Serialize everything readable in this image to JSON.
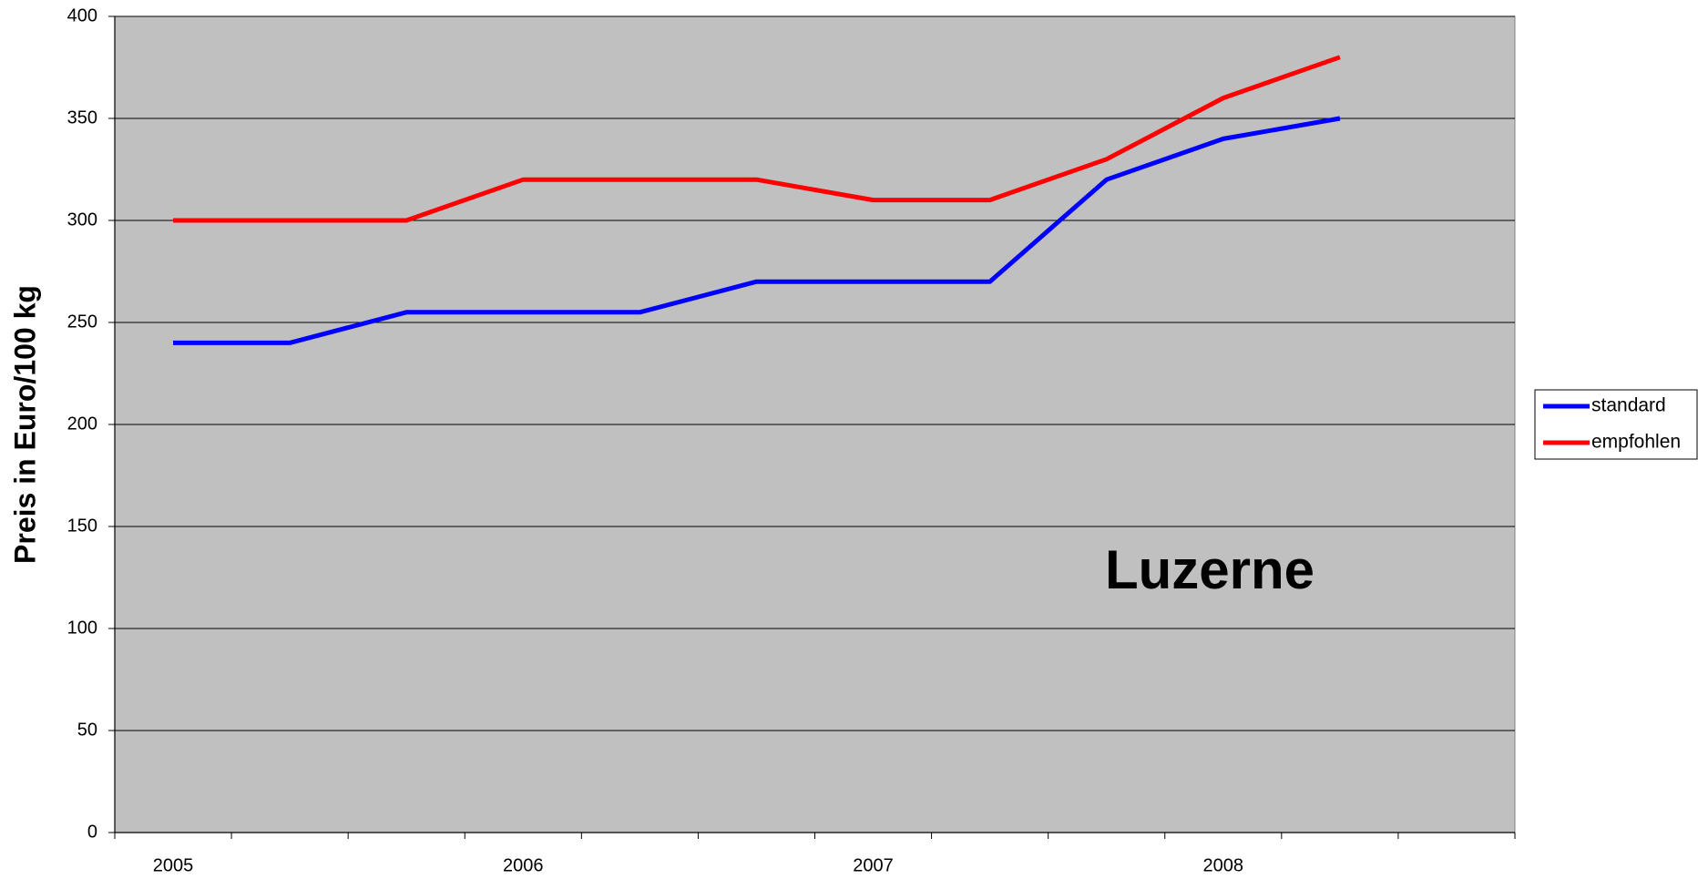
{
  "chart_data": {
    "type": "line",
    "annotation": "Luzerne",
    "y_label": "Preis in Euro/100 kg",
    "categories": [
      "2005",
      null,
      null,
      "2006",
      null,
      null,
      "2007",
      null,
      null,
      "2008",
      null,
      null
    ],
    "series": [
      {
        "name": "standard",
        "color": "#0000ff",
        "values": [
          240,
          240,
          255,
          255,
          255,
          270,
          270,
          270,
          320,
          340,
          350,
          null
        ]
      },
      {
        "name": "empfohlen",
        "color": "#ff0000",
        "values": [
          300,
          300,
          300,
          320,
          320,
          320,
          310,
          310,
          330,
          360,
          380,
          null
        ]
      }
    ],
    "ylim": [
      0,
      400
    ],
    "yticks": [
      0,
      50,
      100,
      150,
      200,
      250,
      300,
      350,
      400
    ],
    "grid": true,
    "legend": "right"
  }
}
